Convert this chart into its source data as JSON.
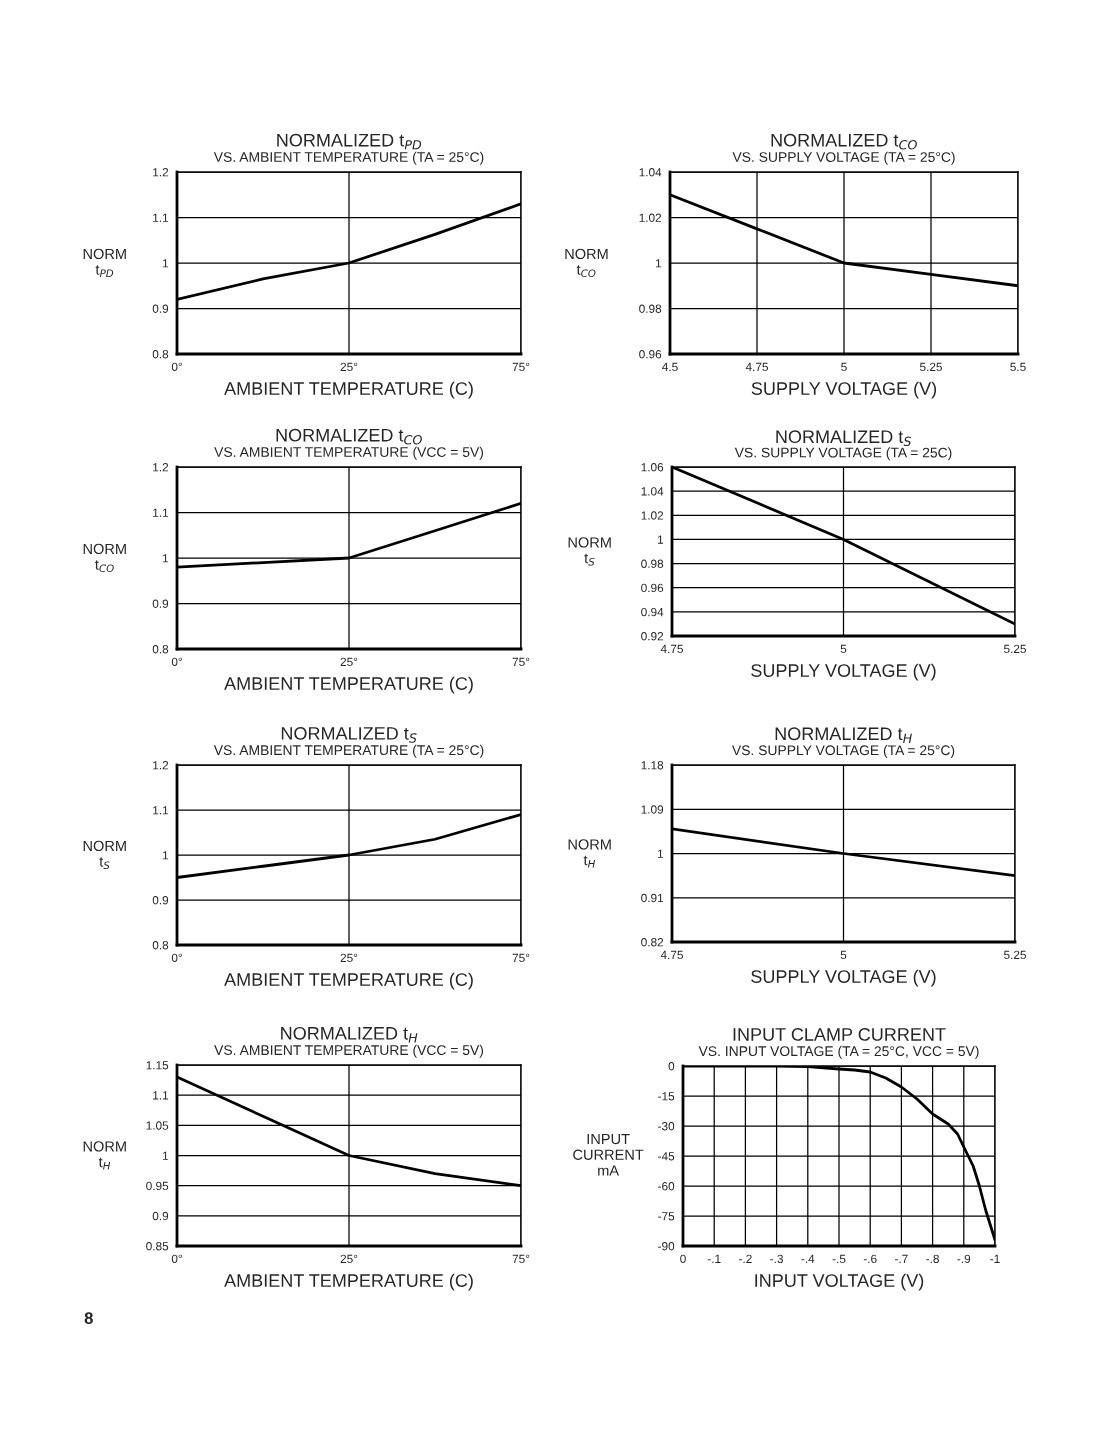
{
  "chart_data": [
    {
      "type": "line",
      "title": "NORMALIZED t$_{PD}$",
      "subtitle": "VS. AMBIENT TEMPERATURE (TA = 25°C)",
      "xlabel": "AMBIENT TEMPERATURE (C)",
      "ylabel": "NORM\nt$_{PD}$",
      "categories": [
        "0°",
        null,
        "25°",
        null,
        "75°"
      ],
      "ylim": [
        0.8,
        1.2
      ],
      "yticks": [
        0.8,
        0.9,
        1,
        1.1,
        1.2
      ],
      "grid": true,
      "series": [
        {
          "color": "#000000",
          "values": [
            0.92,
            0.965,
            1.0,
            1.063,
            1.13
          ]
        }
      ]
    },
    {
      "type": "line",
      "title": "NORMALIZED t$_{CO}$",
      "subtitle": "VS. SUPPLY VOLTAGE (TA = 25°C)",
      "xlabel": "SUPPLY VOLTAGE (V)",
      "ylabel": "NORM\nt$_{CO}$",
      "x": [
        4.5,
        4.75,
        5,
        5.25,
        5.5
      ],
      "xlim": [
        4.5,
        5.5
      ],
      "xticks": [
        4.5,
        4.75,
        5,
        5.25,
        5.5
      ],
      "ylim": [
        0.96,
        1.04
      ],
      "yticks": [
        0.96,
        0.98,
        1,
        1.02,
        1.04
      ],
      "grid": true,
      "series": [
        {
          "color": "#000000",
          "values": [
            1.03,
            1.015,
            1.0,
            0.995,
            0.99
          ]
        }
      ]
    },
    {
      "type": "line",
      "title": "NORMALIZED t$_{CO}$",
      "subtitle": "VS. AMBIENT TEMPERATURE (VCC = 5V)",
      "xlabel": "AMBIENT TEMPERATURE (C)",
      "ylabel": "NORM\nt$_{CO}$",
      "categories": [
        "0°",
        null,
        "25°",
        null,
        "75°"
      ],
      "ylim": [
        0.8,
        1.2
      ],
      "yticks": [
        0.8,
        0.9,
        1,
        1.1,
        1.2
      ],
      "grid": true,
      "series": [
        {
          "color": "#000000",
          "values": [
            0.98,
            0.99,
            1.0,
            1.06,
            1.12
          ]
        }
      ]
    },
    {
      "type": "line",
      "title": "NORMALIZED t$_{S}$",
      "subtitle": "VS. SUPPLY VOLTAGE (TA = 25C)",
      "xlabel": "SUPPLY VOLTAGE (V)",
      "ylabel": "NORM\nt$_{S}$",
      "x": [
        4.75,
        5,
        5.25
      ],
      "xlim": [
        4.75,
        5.25
      ],
      "xticks": [
        4.75,
        5,
        5.25
      ],
      "ylim": [
        0.92,
        1.06
      ],
      "yticks": [
        0.92,
        0.94,
        0.96,
        0.98,
        1,
        1.02,
        1.04,
        1.06
      ],
      "grid": true,
      "series": [
        {
          "color": "#000000",
          "values": [
            1.06,
            1.0,
            0.93
          ]
        }
      ]
    },
    {
      "type": "line",
      "title": "NORMALIZED t$_{S}$",
      "subtitle": "VS. AMBIENT TEMPERATURE (TA = 25°C)",
      "xlabel": "AMBIENT TEMPERATURE (C)",
      "ylabel": "NORM\nt$_{S}$",
      "categories": [
        "0°",
        null,
        "25°",
        null,
        "75°"
      ],
      "ylim": [
        0.8,
        1.2
      ],
      "yticks": [
        0.8,
        0.9,
        1,
        1.1,
        1.2
      ],
      "grid": true,
      "series": [
        {
          "color": "#000000",
          "values": [
            0.95,
            0.975,
            1.0,
            1.035,
            1.09
          ]
        }
      ]
    },
    {
      "type": "line",
      "title": "NORMALIZED t$_{H}$",
      "subtitle": "VS. SUPPLY VOLTAGE (TA = 25°C)",
      "xlabel": "SUPPLY VOLTAGE (V)",
      "ylabel": "NORM\nt$_{H}$",
      "x": [
        4.75,
        5,
        5.25
      ],
      "xlim": [
        4.75,
        5.25
      ],
      "xticks": [
        4.75,
        5,
        5.25
      ],
      "ylim": [
        0.82,
        1.18
      ],
      "yticks": [
        0.82,
        0.91,
        1,
        1.09,
        1.18
      ],
      "grid": true,
      "series": [
        {
          "color": "#000000",
          "values": [
            1.05,
            1.0,
            0.955
          ]
        }
      ]
    },
    {
      "type": "line",
      "title": "NORMALIZED t$_{H}$",
      "subtitle": "VS. AMBIENT TEMPERATURE (VCC = 5V)",
      "xlabel": "AMBIENT TEMPERATURE (C)",
      "ylabel": "NORM\nt$_{H}$",
      "categories": [
        "0°",
        null,
        "25°",
        null,
        "75°"
      ],
      "ylim": [
        0.85,
        1.15
      ],
      "yticks": [
        0.85,
        0.9,
        0.95,
        1,
        1.05,
        1.1,
        1.15
      ],
      "grid": true,
      "annotations": [
        "8"
      ],
      "series": [
        {
          "color": "#000000",
          "values": [
            1.13,
            1.065,
            1.0,
            0.97,
            0.95
          ]
        }
      ]
    },
    {
      "type": "line",
      "title": "INPUT CLAMP CURRENT",
      "subtitle": "VS. INPUT VOLTAGE (TA = 25°C, VCC = 5V)",
      "xlabel": "INPUT VOLTAGE (V)",
      "ylabel": "INPUT\nCURRENT\nmA",
      "xlim": [
        0,
        -1
      ],
      "xticks": [
        0,
        {
          "value": -0.1,
          "label": "-.1"
        },
        {
          "value": -0.2,
          "label": "-.2"
        },
        {
          "value": -0.3,
          "label": "-.3"
        },
        {
          "value": -0.4,
          "label": "-.4"
        },
        {
          "value": -0.5,
          "label": "-.5"
        },
        {
          "value": -0.6,
          "label": "-.6"
        },
        {
          "value": -0.7,
          "label": "-.7"
        },
        {
          "value": -0.8,
          "label": "-.8"
        },
        {
          "value": -0.9,
          "label": "-.9"
        },
        {
          "value": -1,
          "label": "-1"
        }
      ],
      "ylim": [
        -90,
        0
      ],
      "yticks": [
        {
          "value": -90,
          "label": "-90"
        },
        {
          "value": -75,
          "label": "-75"
        },
        {
          "value": -60,
          "label": "-60"
        },
        {
          "value": -45,
          "label": "-45"
        },
        {
          "value": -30,
          "label": "-30"
        },
        {
          "value": -15,
          "label": "-15"
        },
        0
      ],
      "grid": true,
      "x": [
        0,
        -0.3,
        -0.4,
        -0.5,
        -0.55,
        -0.6,
        -0.65,
        -0.7,
        -0.75,
        -0.8,
        -0.85,
        -0.88,
        -0.9,
        -0.93,
        -0.95,
        -0.97,
        -1
      ],
      "series": [
        {
          "color": "#000000",
          "values": [
            0,
            0,
            -0.3,
            -1.5,
            -2,
            -3,
            -6,
            -10.5,
            -16.5,
            -24,
            -29,
            -34,
            -40.5,
            -50,
            -60,
            -72,
            -87
          ]
        }
      ]
    }
  ]
}
